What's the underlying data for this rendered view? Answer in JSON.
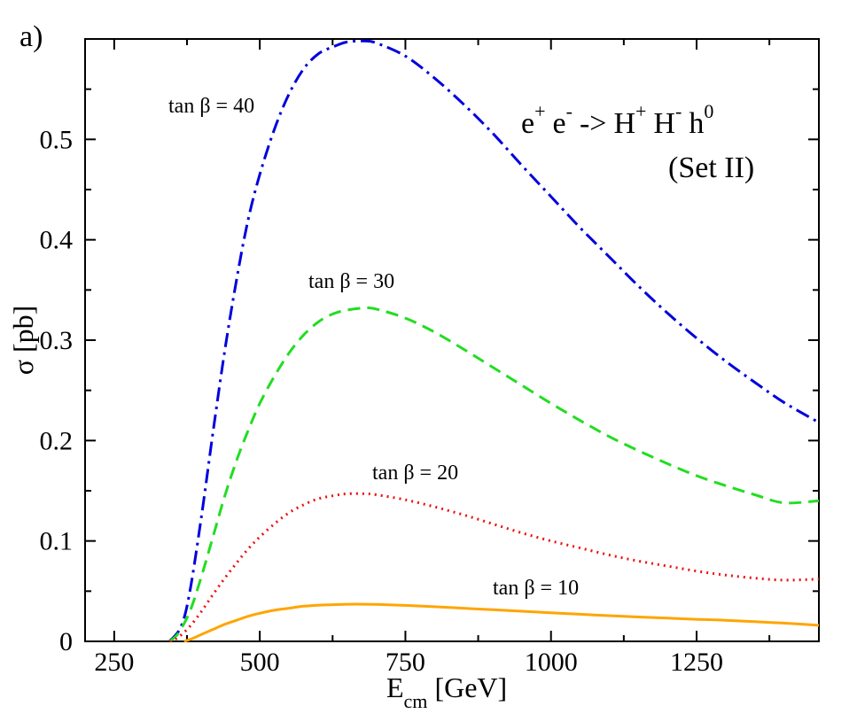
{
  "panel_label": "a)",
  "reaction": {
    "e1": "e",
    "e1_sup": "+",
    "e2": "e",
    "e2_sup": "-",
    "arrow": "->",
    "h1": "H",
    "h1_sup": "+",
    "h2": "H",
    "h2_sup": "-",
    "h3": "h",
    "h3_sup": "0"
  },
  "set_label": "(Set II)",
  "chart_data": {
    "type": "line",
    "title": "",
    "xlabel": {
      "main": "E",
      "sub": "cm",
      "unit": "[GeV]"
    },
    "ylabel": "σ [pb]",
    "xlim": [
      200,
      1460
    ],
    "ylim": [
      0,
      0.6
    ],
    "xticks": [
      250,
      500,
      750,
      1000,
      1250
    ],
    "yticks": [
      0,
      0.1,
      0.2,
      0.3,
      0.4,
      0.5
    ],
    "ytick_labels": [
      "0",
      "0.1",
      "0.2",
      "0.3",
      "0.4",
      "0.5"
    ],
    "series": [
      {
        "name": "tan β = 40",
        "label": "tan β = 40",
        "color": "#0000dd",
        "style": "dashdot",
        "x": [
          345,
          365,
          380,
          400,
          420,
          440,
          460,
          480,
          500,
          525,
          550,
          575,
          600,
          625,
          650,
          680,
          700,
          750,
          800,
          850,
          900,
          950,
          1000,
          1050,
          1100,
          1150,
          1200,
          1250,
          1300,
          1350,
          1400,
          1460
        ],
        "y": [
          0,
          0.015,
          0.05,
          0.125,
          0.21,
          0.29,
          0.36,
          0.42,
          0.465,
          0.51,
          0.545,
          0.57,
          0.585,
          0.592,
          0.597,
          0.598,
          0.596,
          0.583,
          0.561,
          0.535,
          0.506,
          0.474,
          0.443,
          0.412,
          0.383,
          0.354,
          0.327,
          0.302,
          0.279,
          0.258,
          0.238,
          0.218
        ]
      },
      {
        "name": "tan β = 30",
        "label": "tan β = 30",
        "color": "#22dd22",
        "style": "dashed",
        "x": [
          345,
          360,
          380,
          400,
          420,
          440,
          460,
          480,
          500,
          525,
          550,
          575,
          600,
          625,
          650,
          680,
          700,
          750,
          800,
          850,
          900,
          950,
          1000,
          1050,
          1100,
          1150,
          1200,
          1250,
          1300,
          1350,
          1400,
          1460
        ],
        "y": [
          0,
          0.008,
          0.03,
          0.065,
          0.105,
          0.145,
          0.18,
          0.21,
          0.237,
          0.264,
          0.287,
          0.305,
          0.318,
          0.326,
          0.33,
          0.332,
          0.331,
          0.322,
          0.308,
          0.291,
          0.273,
          0.255,
          0.237,
          0.22,
          0.204,
          0.19,
          0.177,
          0.165,
          0.155,
          0.146,
          0.138,
          0.14
        ]
      },
      {
        "name": "tan β = 20",
        "label": "tan β = 20",
        "color": "#ee1111",
        "style": "dotted",
        "x": [
          345,
          360,
          380,
          400,
          420,
          440,
          460,
          480,
          500,
          525,
          550,
          575,
          600,
          625,
          650,
          680,
          700,
          750,
          800,
          850,
          900,
          950,
          1000,
          1050,
          1100,
          1150,
          1200,
          1250,
          1300,
          1350,
          1400,
          1460
        ],
        "y": [
          0,
          0.004,
          0.015,
          0.03,
          0.047,
          0.063,
          0.078,
          0.092,
          0.104,
          0.117,
          0.128,
          0.136,
          0.142,
          0.145,
          0.147,
          0.147,
          0.146,
          0.141,
          0.134,
          0.126,
          0.117,
          0.108,
          0.1,
          0.093,
          0.086,
          0.08,
          0.075,
          0.07,
          0.066,
          0.063,
          0.061,
          0.062
        ]
      },
      {
        "name": "tan β = 10",
        "label": "tan β = 10",
        "color": "#ffa500",
        "style": "solid",
        "x": [
          370,
          385,
          400,
          420,
          440,
          460,
          480,
          500,
          525,
          550,
          575,
          600,
          625,
          650,
          680,
          700,
          750,
          800,
          850,
          900,
          950,
          1000,
          1050,
          1100,
          1150,
          1200,
          1250,
          1300,
          1350,
          1400,
          1460
        ],
        "y": [
          0,
          0.003,
          0.007,
          0.012,
          0.017,
          0.021,
          0.025,
          0.028,
          0.031,
          0.033,
          0.035,
          0.036,
          0.0365,
          0.037,
          0.037,
          0.0368,
          0.0358,
          0.0345,
          0.033,
          0.0315,
          0.03,
          0.0285,
          0.027,
          0.0256,
          0.0243,
          0.0231,
          0.022,
          0.021,
          0.0196,
          0.0182,
          0.016
        ]
      }
    ]
  }
}
